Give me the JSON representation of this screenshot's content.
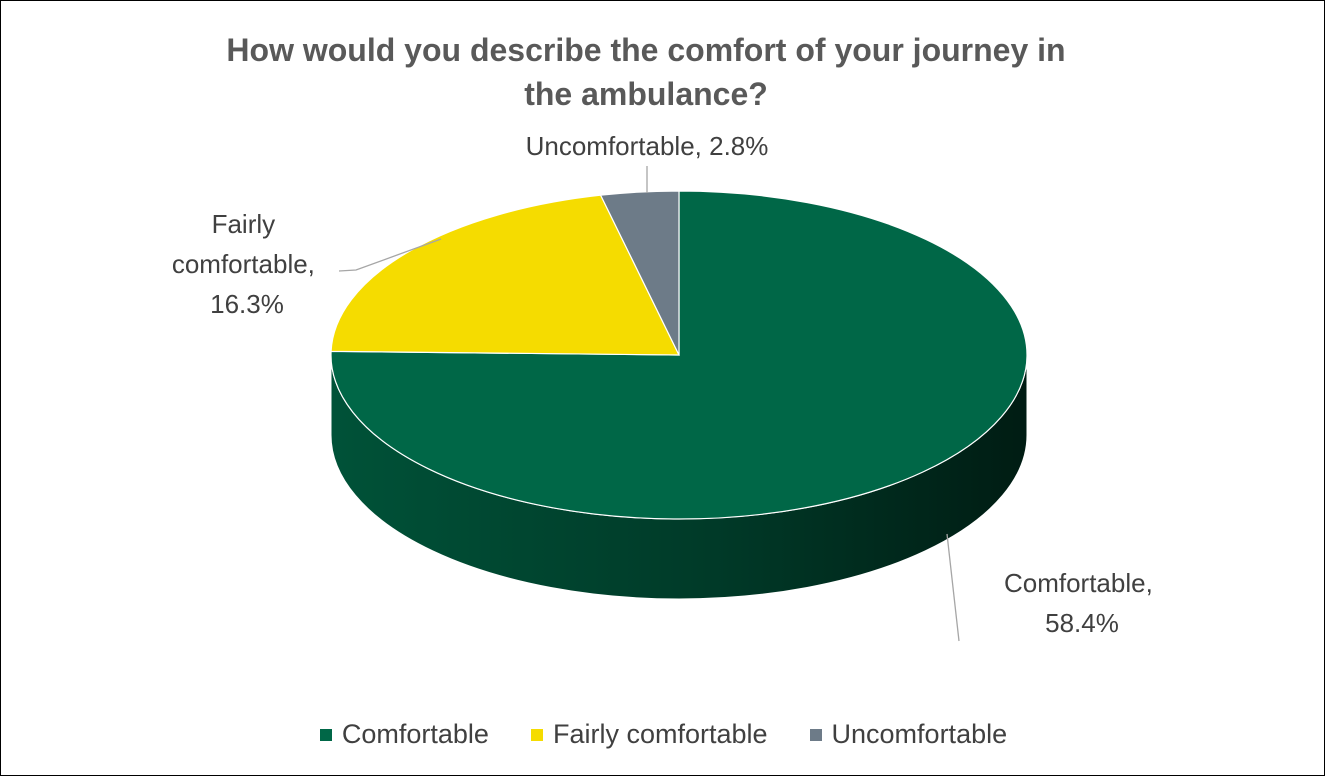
{
  "chart_data": {
    "type": "pie",
    "title": "How would you describe the comfort of your journey in the ambulance?",
    "title_lines": [
      "How would you describe the comfort of your journey in",
      "the ambulance?"
    ],
    "three_d": true,
    "legend_position": "bottom",
    "slices": [
      {
        "name": "Comfortable",
        "value": 58.4,
        "label_lines": [
          "Comfortable,",
          "58.4%"
        ],
        "color": "#006747"
      },
      {
        "name": "Fairly comfortable",
        "value": 16.3,
        "label_lines": [
          "Fairly",
          "comfortable,",
          "16.3%"
        ],
        "color": "#f5dc00"
      },
      {
        "name": "Uncomfortable",
        "value": 2.8,
        "label_lines": [
          "Uncomfortable, 2.8%"
        ],
        "color": "#6d7b88"
      }
    ]
  }
}
